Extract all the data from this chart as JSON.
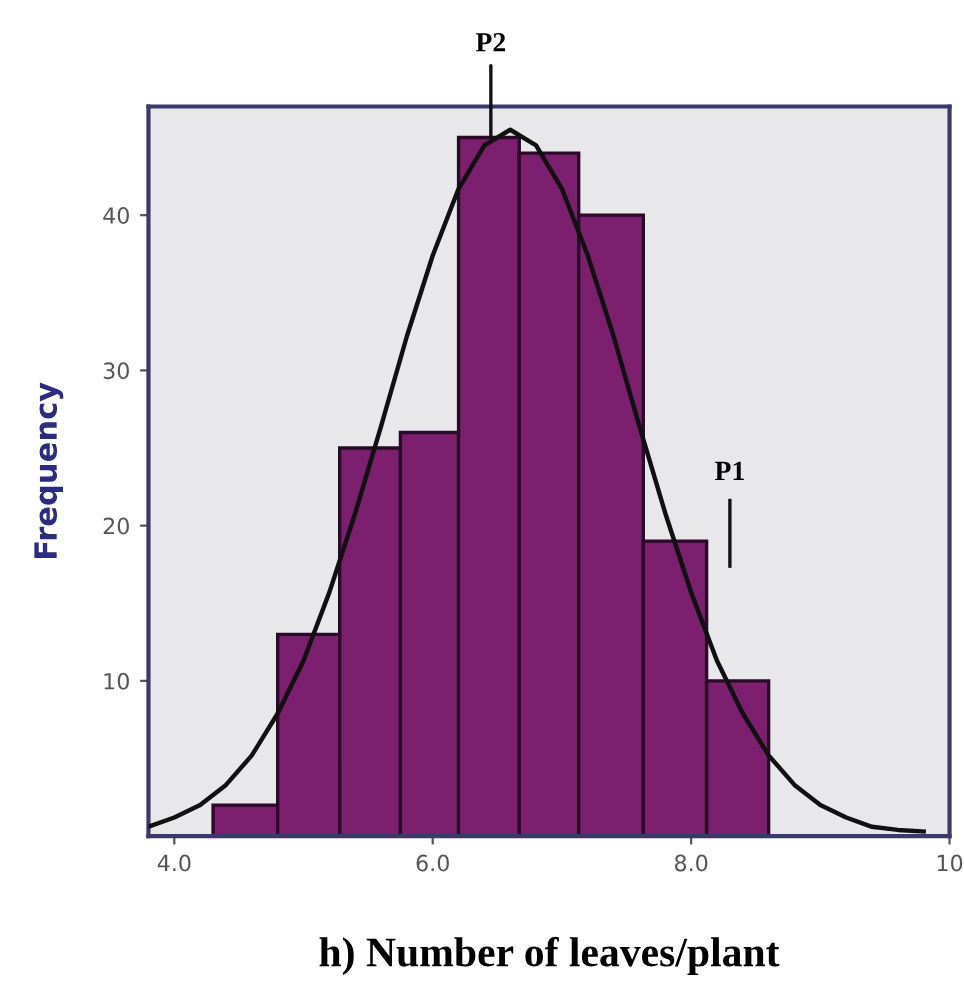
{
  "chart_data": [
    {
      "type": "histogram",
      "xlabel": "h) Number of leaves/plant",
      "ylabel": "Frequency",
      "bins": [
        4.3,
        4.8,
        5.28,
        5.75,
        6.2,
        6.67,
        7.13,
        7.63,
        8.12,
        8.6
      ],
      "values": [
        2,
        13,
        25,
        26,
        45,
        44,
        40,
        19,
        10
      ],
      "color": "#7b1f6e",
      "xlim": [
        3.8,
        10.0
      ],
      "xticks": [
        {
          "value": 4,
          "label": "4.0"
        },
        {
          "value": 6,
          "label": "6.0"
        },
        {
          "value": 8,
          "label": "8.0"
        },
        {
          "value": 10,
          "label": "10"
        }
      ],
      "ylim": [
        0,
        47
      ],
      "yticks": [
        10,
        20,
        30,
        40
      ],
      "grid": false,
      "annotations": [
        {
          "text": "P2",
          "x": 6.45,
          "y": 45
        }
      ],
      "ref_lines": [
        {
          "axis": "x",
          "value": 8.3,
          "label": "P1"
        }
      ],
      "series": [
        {
          "type": "line",
          "color": "#111111",
          "x": [
            3.8,
            4.0,
            4.2,
            4.4,
            4.6,
            4.8,
            5.0,
            5.2,
            5.4,
            5.6,
            5.8,
            6.0,
            6.2,
            6.4,
            6.6,
            6.8,
            7.0,
            7.2,
            7.4,
            7.6,
            7.8,
            8.0,
            8.2,
            8.4,
            8.6,
            8.8,
            9.0,
            9.2,
            9.4,
            9.6,
            9.8
          ],
          "values": [
            0.6,
            1.2,
            2.0,
            3.3,
            5.2,
            7.9,
            11.3,
            15.7,
            20.8,
            26.4,
            32.2,
            37.4,
            41.7,
            44.5,
            45.5,
            44.5,
            41.7,
            37.4,
            32.2,
            26.4,
            20.8,
            15.7,
            11.3,
            7.9,
            5.2,
            3.3,
            2.0,
            1.2,
            0.6,
            0.4,
            0.3
          ]
        }
      ]
    }
  ]
}
